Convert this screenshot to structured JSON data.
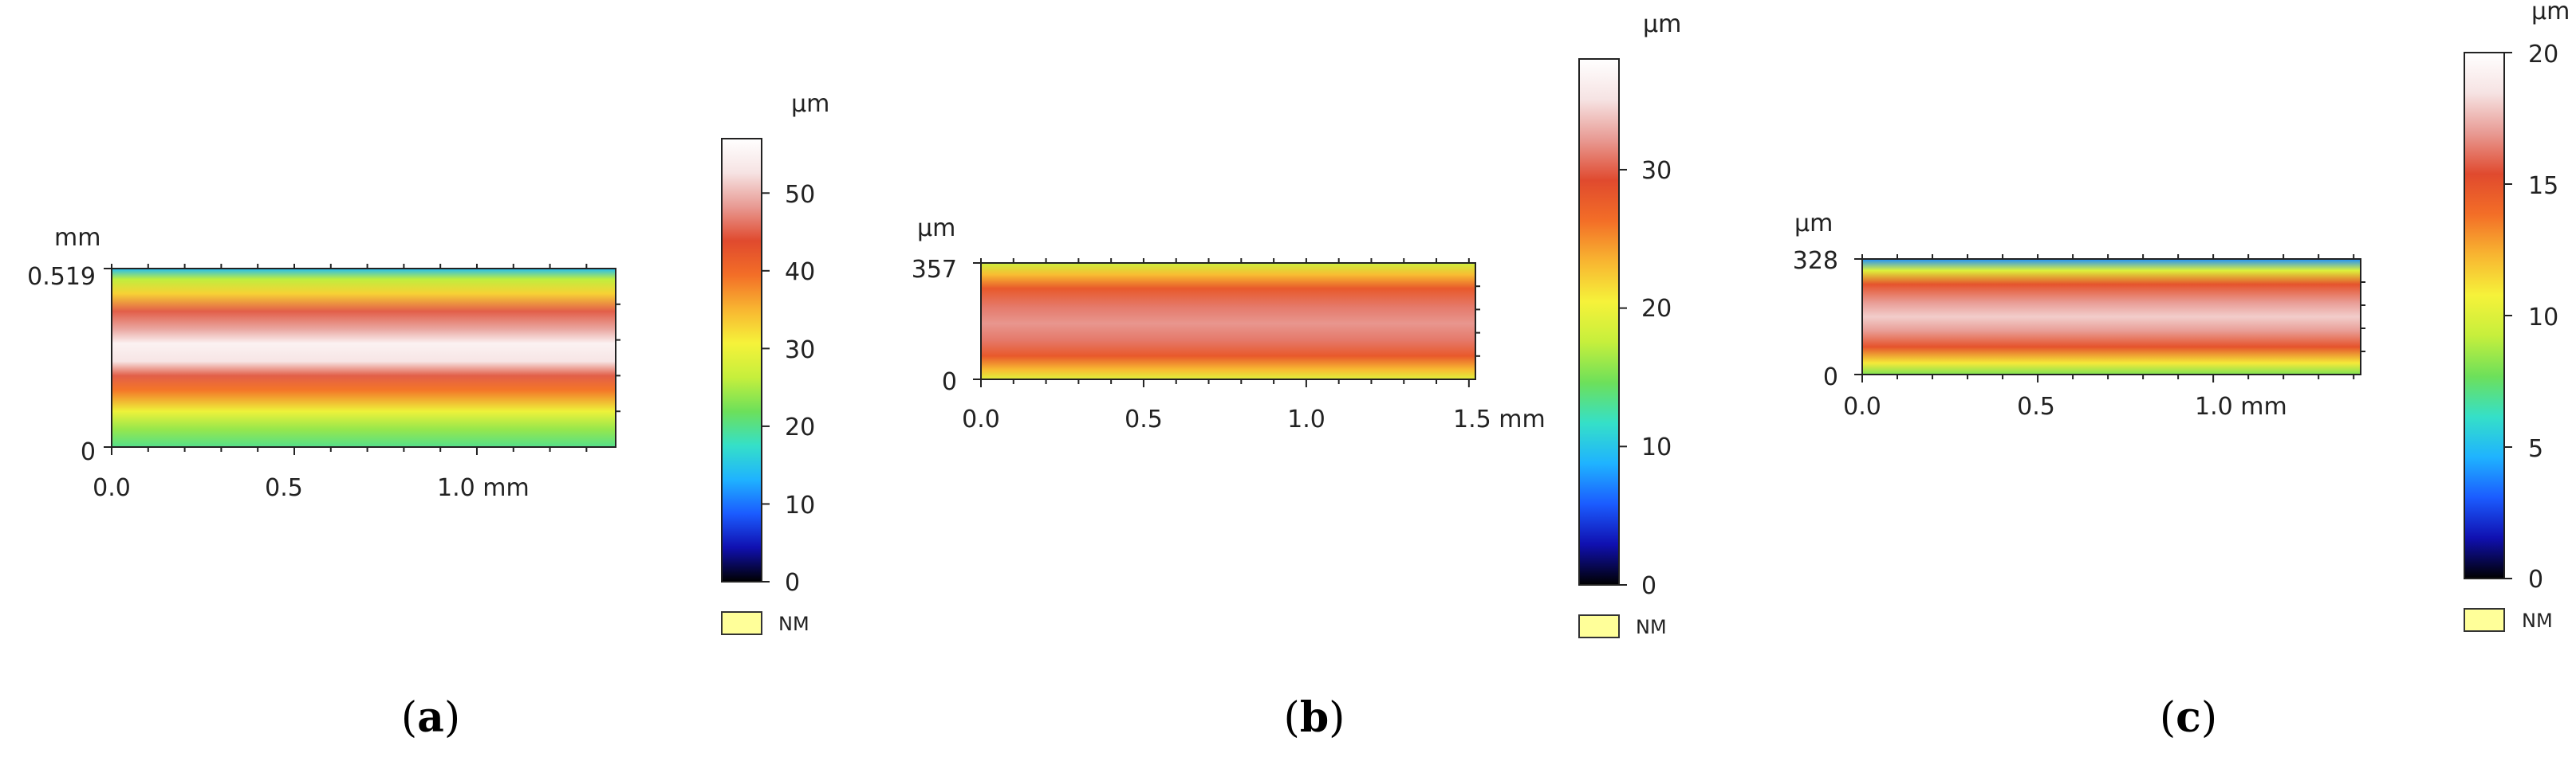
{
  "figure": {
    "panels": [
      "a",
      "b",
      "c"
    ],
    "colormap": [
      "#000000",
      "#1010b0",
      "#1b5cff",
      "#1fb3ff",
      "#35e0c8",
      "#6de05a",
      "#c6ef3c",
      "#f6f23a",
      "#f8b531",
      "#f36e27",
      "#e04a2e",
      "#e89a93",
      "#f6e3e3",
      "#ffffff"
    ],
    "not_measured_color": "#ffff99"
  },
  "chart_data": [
    {
      "type": "heatmap",
      "panel_label": "a",
      "title": "",
      "x_unit": "mm",
      "y_unit": "mm",
      "z_unit": "µm",
      "x_ticks": [
        "0.0",
        "0.5",
        "1.0 mm"
      ],
      "x_tick_values": [
        0.0,
        0.5,
        1.0
      ],
      "x_range": [
        0,
        1.38
      ],
      "y_ticks": [
        "0",
        "0.519"
      ],
      "y_tick_values": [
        0,
        0.519
      ],
      "y_range": [
        0,
        0.519
      ],
      "z_range": [
        0,
        57
      ],
      "colorbar_ticks": [
        "0",
        "10",
        "20",
        "30",
        "40",
        "50"
      ],
      "colorbar_values": [
        0,
        10,
        20,
        30,
        40,
        50
      ],
      "legend": "NM",
      "profile": [
        [
          0,
          14
        ],
        [
          0.06,
          26
        ],
        [
          0.14,
          33
        ],
        [
          0.24,
          45
        ],
        [
          0.34,
          49
        ],
        [
          0.42,
          55
        ],
        [
          0.52,
          53
        ],
        [
          0.6,
          45
        ],
        [
          0.68,
          39
        ],
        [
          0.8,
          30
        ],
        [
          0.9,
          24
        ],
        [
          1,
          20
        ]
      ]
    },
    {
      "type": "heatmap",
      "panel_label": "b",
      "title": "",
      "x_unit": "mm",
      "y_unit": "µm",
      "z_unit": "µm",
      "x_ticks": [
        "0.0",
        "0.5",
        "1.0",
        "1.5 mm"
      ],
      "x_tick_values": [
        0.0,
        0.5,
        1.0,
        1.5
      ],
      "x_range": [
        0,
        1.52
      ],
      "y_ticks": [
        "0",
        "357"
      ],
      "y_tick_values": [
        0,
        357
      ],
      "y_range": [
        0,
        357
      ],
      "z_range": [
        0,
        38
      ],
      "colorbar_ticks": [
        "0",
        "10",
        "20",
        "30"
      ],
      "colorbar_values": [
        0,
        10,
        20,
        30
      ],
      "legend": "NM",
      "profile": [
        [
          0,
          18
        ],
        [
          0.1,
          23
        ],
        [
          0.22,
          28
        ],
        [
          0.38,
          31
        ],
        [
          0.52,
          32
        ],
        [
          0.66,
          31
        ],
        [
          0.8,
          28
        ],
        [
          0.92,
          23
        ],
        [
          1,
          19
        ]
      ]
    },
    {
      "type": "heatmap",
      "panel_label": "c",
      "title": "",
      "x_unit": "mm",
      "y_unit": "µm",
      "z_unit": "µm",
      "x_ticks": [
        "0.0",
        "0.5",
        "1.0 mm"
      ],
      "x_tick_values": [
        0.0,
        0.5,
        1.0
      ],
      "x_range": [
        0,
        1.42
      ],
      "y_ticks": [
        "0",
        "328"
      ],
      "y_tick_values": [
        0,
        328
      ],
      "y_range": [
        0,
        328
      ],
      "z_range": [
        0,
        20
      ],
      "colorbar_ticks": [
        "0",
        "5",
        "10",
        "15",
        "20"
      ],
      "colorbar_values": [
        0,
        5,
        10,
        15,
        20
      ],
      "legend": "NM",
      "profile": [
        [
          0,
          4
        ],
        [
          0.1,
          10
        ],
        [
          0.22,
          15
        ],
        [
          0.38,
          17
        ],
        [
          0.5,
          18
        ],
        [
          0.62,
          17
        ],
        [
          0.76,
          15
        ],
        [
          0.9,
          11
        ],
        [
          1,
          8
        ]
      ]
    }
  ]
}
